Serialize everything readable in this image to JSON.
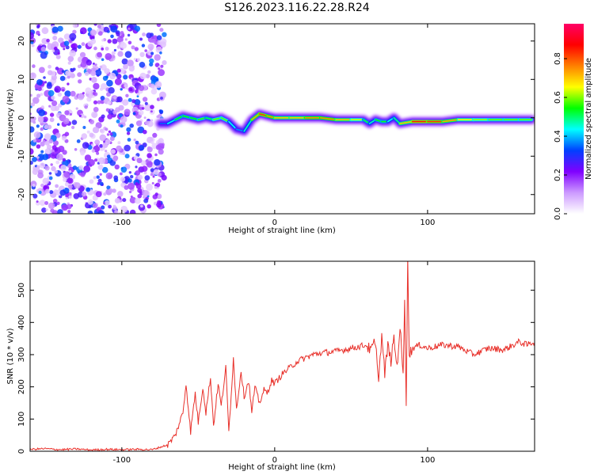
{
  "title": "S126.2023.116.22.28.R24",
  "chart_data": [
    {
      "type": "heatmap",
      "name": "spectrogram",
      "xlabel": "Height of straight line (km)",
      "ylabel": "Frequency (Hz)",
      "xlim": [
        -160,
        170
      ],
      "ylim": [
        -25,
        24.5
      ],
      "xticks": [
        -100,
        0,
        100
      ],
      "yticks": [
        -20,
        -10,
        0,
        10,
        20
      ],
      "noise_region_x": [
        -160,
        -75
      ],
      "ridge": {
        "x": [
          -75,
          -70,
          -65,
          -60,
          -55,
          -50,
          -45,
          -40,
          -35,
          -30,
          -25,
          -20,
          -15,
          -10,
          -5,
          0,
          10,
          20,
          30,
          40,
          50,
          58,
          62,
          66,
          70,
          74,
          78,
          82,
          90,
          100,
          110,
          120,
          130,
          140,
          150,
          160,
          168
        ],
        "y": [
          -1.5,
          -1.5,
          -0.5,
          0.5,
          0,
          -0.5,
          0,
          -0.5,
          0,
          -1,
          -3,
          -3.5,
          -0.5,
          1,
          0.5,
          0,
          0,
          0,
          0,
          -0.5,
          -0.5,
          -0.5,
          -1.5,
          -0.5,
          -1,
          -1,
          0,
          -1.5,
          -1,
          -1,
          -1,
          -0.5,
          -0.5,
          -0.5,
          -0.5,
          -0.5,
          -0.5
        ],
        "amplitude": [
          0.3,
          0.4,
          0.5,
          0.6,
          0.5,
          0.6,
          0.55,
          0.5,
          0.7,
          0.5,
          0.4,
          0.35,
          0.6,
          0.9,
          0.8,
          0.75,
          0.7,
          0.75,
          0.8,
          0.75,
          0.7,
          0.6,
          0.45,
          0.5,
          0.6,
          0.5,
          0.4,
          0.6,
          0.85,
          0.9,
          0.8,
          0.7,
          0.65,
          0.6,
          0.6,
          0.6,
          0.6
        ]
      },
      "colorbar": {
        "label": "Normalized spectral amplitude",
        "range": [
          0,
          0.98
        ],
        "ticks": [
          0.0,
          0.2,
          0.4,
          0.6,
          0.8
        ],
        "colors": [
          "#ffffff",
          "#cc99ff",
          "#8000ff",
          "#0040ff",
          "#00ffff",
          "#00ff00",
          "#ffff00",
          "#ff8000",
          "#ff0000",
          "#ff0066"
        ]
      }
    },
    {
      "type": "line",
      "name": "snr",
      "xlabel": "Height of straight line (km)",
      "ylabel": "SNR (10 * v/v)",
      "xlim": [
        -160,
        170
      ],
      "ylim": [
        0,
        590
      ],
      "xticks": [
        -100,
        0,
        100
      ],
      "yticks": [
        0,
        100,
        200,
        300,
        400,
        500
      ],
      "color": "#e8302a",
      "x": [
        -160,
        -150,
        -140,
        -130,
        -120,
        -110,
        -100,
        -90,
        -80,
        -70,
        -65,
        -60,
        -58,
        -55,
        -52,
        -50,
        -47,
        -45,
        -42,
        -40,
        -37,
        -35,
        -32,
        -30,
        -27,
        -25,
        -22,
        -20,
        -17,
        -15,
        -13,
        -10,
        -7,
        -5,
        -2,
        0,
        5,
        10,
        15,
        20,
        25,
        30,
        40,
        50,
        55,
        60,
        63,
        65,
        67,
        68,
        70,
        72,
        74,
        76,
        78,
        80,
        82,
        84,
        85,
        86,
        87,
        88,
        90,
        95,
        100,
        110,
        120,
        130,
        140,
        150,
        160,
        165,
        170
      ],
      "y": [
        6,
        8,
        5,
        7,
        4,
        6,
        5,
        6,
        5,
        20,
        50,
        120,
        210,
        60,
        180,
        90,
        200,
        120,
        230,
        80,
        210,
        140,
        260,
        60,
        290,
        130,
        250,
        170,
        220,
        120,
        200,
        150,
        190,
        180,
        220,
        210,
        240,
        260,
        280,
        290,
        300,
        305,
        310,
        320,
        325,
        330,
        310,
        340,
        290,
        220,
        360,
        240,
        330,
        280,
        350,
        260,
        390,
        230,
        480,
        150,
        590,
        300,
        320,
        330,
        320,
        330,
        325,
        300,
        320,
        315,
        340,
        330,
        340
      ]
    }
  ]
}
